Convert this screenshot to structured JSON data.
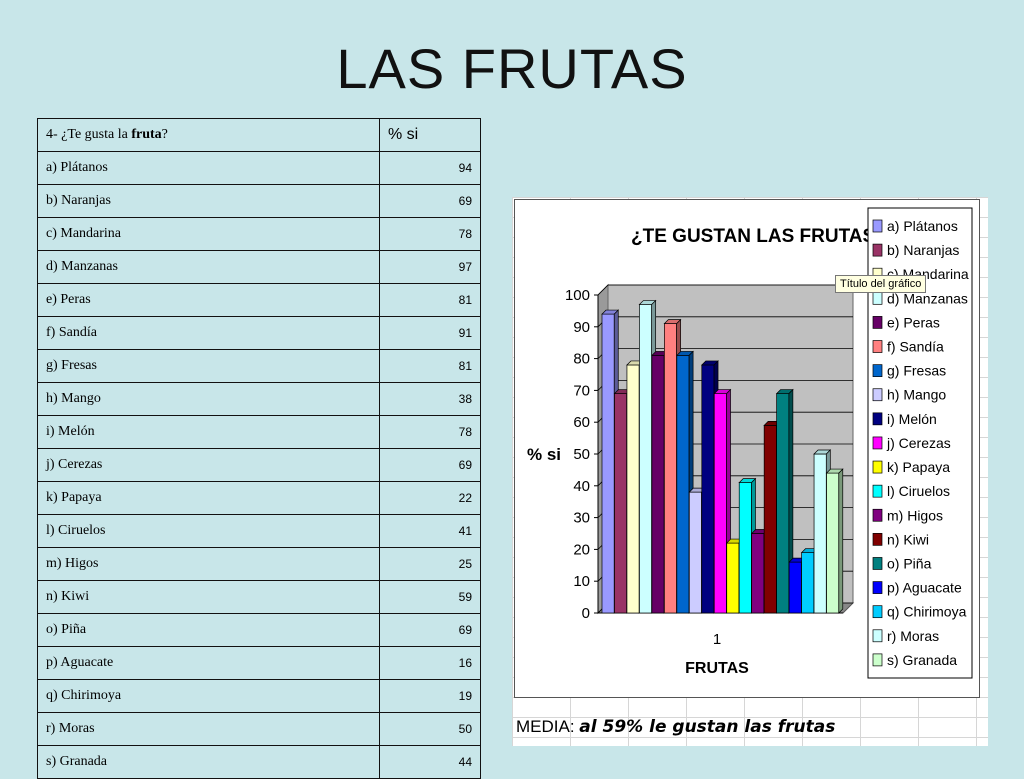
{
  "slide": {
    "title": "LAS FRUTAS"
  },
  "table": {
    "question_prefix": "4- ¿Te gusta la ",
    "question_bold": "fruta",
    "question_suffix": "?",
    "value_header": "% si",
    "rows": [
      {
        "label": "a) Plátanos",
        "value": "94"
      },
      {
        "label": "b) Naranjas",
        "value": "69"
      },
      {
        "label": "c) Mandarina",
        "value": "78"
      },
      {
        "label": "d) Manzanas",
        "value": "97"
      },
      {
        "label": "e)   Peras",
        "value": "81"
      },
      {
        "label": "f) Sandía",
        "value": "91"
      },
      {
        "label": "g) Fresas",
        "value": "81"
      },
      {
        "label": "h) Mango",
        "value": "38"
      },
      {
        "label": "i) Melón",
        "value": "78"
      },
      {
        "label": "j) Cerezas",
        "value": "69"
      },
      {
        "label": "k) Papaya",
        "value": "22"
      },
      {
        "label": "l) Ciruelos",
        "value": "41"
      },
      {
        "label": "m) Higos",
        "value": "25"
      },
      {
        "label": "n) Kiwi",
        "value": "59"
      },
      {
        "label": "o) Piña",
        "value": "69"
      },
      {
        "label": "p) Aguacate",
        "value": "16"
      },
      {
        "label": "q) Chirimoya",
        "value": "19"
      },
      {
        "label": "r) Moras",
        "value": "50"
      },
      {
        "label": "s) Granada",
        "value": "44"
      }
    ]
  },
  "chart_data": {
    "type": "bar",
    "title": "¿TE GUSTAN LAS FRUTAS?",
    "xlabel": "FRUTAS",
    "ylabel": "% si",
    "categories": [
      "1"
    ],
    "ylim": [
      0,
      100
    ],
    "yticks": [
      0,
      10,
      20,
      30,
      40,
      50,
      60,
      70,
      80,
      90,
      100
    ],
    "grid": true,
    "legend_position": "right",
    "series": [
      {
        "name": "a) Plátanos",
        "values": [
          94
        ],
        "color": "#9999ff"
      },
      {
        "name": "b) Naranjas",
        "values": [
          69
        ],
        "color": "#993366"
      },
      {
        "name": "c) Mandarina",
        "values": [
          78
        ],
        "color": "#ffffcc"
      },
      {
        "name": "d) Manzanas",
        "values": [
          97
        ],
        "color": "#ccffff"
      },
      {
        "name": "e)   Peras",
        "values": [
          81
        ],
        "color": "#660066"
      },
      {
        "name": "f) Sandía",
        "values": [
          91
        ],
        "color": "#ff8080"
      },
      {
        "name": "g) Fresas",
        "values": [
          81
        ],
        "color": "#0066cc"
      },
      {
        "name": "h) Mango",
        "values": [
          38
        ],
        "color": "#ccccff"
      },
      {
        "name": "i) Melón",
        "values": [
          78
        ],
        "color": "#000080"
      },
      {
        "name": "j) Cerezas",
        "values": [
          69
        ],
        "color": "#ff00ff"
      },
      {
        "name": "k) Papaya",
        "values": [
          22
        ],
        "color": "#ffff00"
      },
      {
        "name": "l) Ciruelos",
        "values": [
          41
        ],
        "color": "#00ffff"
      },
      {
        "name": "m) Higos",
        "values": [
          25
        ],
        "color": "#800080"
      },
      {
        "name": "n) Kiwi",
        "values": [
          59
        ],
        "color": "#800000"
      },
      {
        "name": "o) Piña",
        "values": [
          69
        ],
        "color": "#008080"
      },
      {
        "name": "p) Aguacate",
        "values": [
          16
        ],
        "color": "#0000ff"
      },
      {
        "name": "q) Chirimoya",
        "values": [
          19
        ],
        "color": "#00ccff"
      },
      {
        "name": "r) Moras",
        "values": [
          50
        ],
        "color": "#ccffff"
      },
      {
        "name": "s) Granada",
        "values": [
          44
        ],
        "color": "#ccffcc"
      }
    ]
  },
  "tooltip": "Título del gráfico",
  "media": {
    "label": "MEDIA:",
    "text": "al 59% le gustan las frutas"
  }
}
